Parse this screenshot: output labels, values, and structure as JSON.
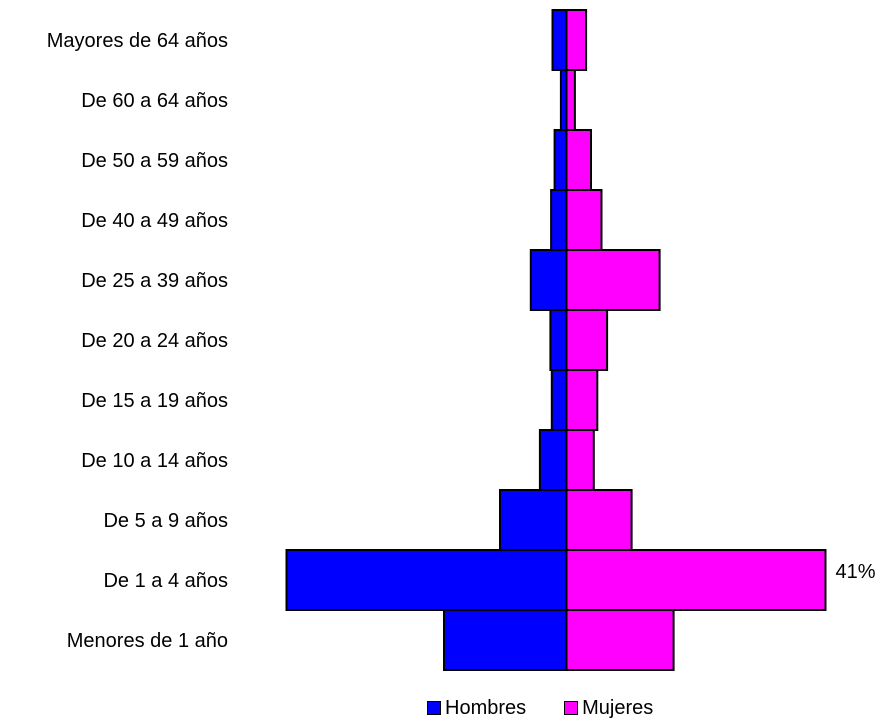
{
  "chart_data": {
    "type": "bar",
    "orientation": "horizontal",
    "layout": "population-pyramid",
    "categories": [
      "Mayores de 64 años",
      "De 60 a 64 años",
      "De 50 a 59 años",
      "De 40 a 49 años",
      "De 25 a 39 años",
      "De 20 a 24 años",
      "De 15 a 19 años",
      "De 10 a 14 años",
      "De 5 a 9 años",
      "De 1 a 4 años",
      "Menores de 1 año"
    ],
    "series": [
      {
        "name": "Hombres",
        "color": "#0000FF",
        "direction": "left",
        "values": [
          2.0,
          0.8,
          1.7,
          2.2,
          5.1,
          2.3,
          2.1,
          3.8,
          9.5,
          40.0,
          17.5
        ]
      },
      {
        "name": "Mujeres",
        "color": "#FF00FF",
        "direction": "right",
        "values": [
          2.8,
          1.2,
          3.5,
          5.0,
          13.3,
          5.8,
          4.4,
          3.9,
          9.3,
          37.0,
          15.3
        ]
      }
    ],
    "data_labels": [
      {
        "category": "De 1 a 4 años",
        "text": "41%"
      }
    ],
    "legend": {
      "position": "bottom",
      "items": [
        "Hombres",
        "Mujeres"
      ]
    },
    "grid": false,
    "axes_visible": false
  }
}
